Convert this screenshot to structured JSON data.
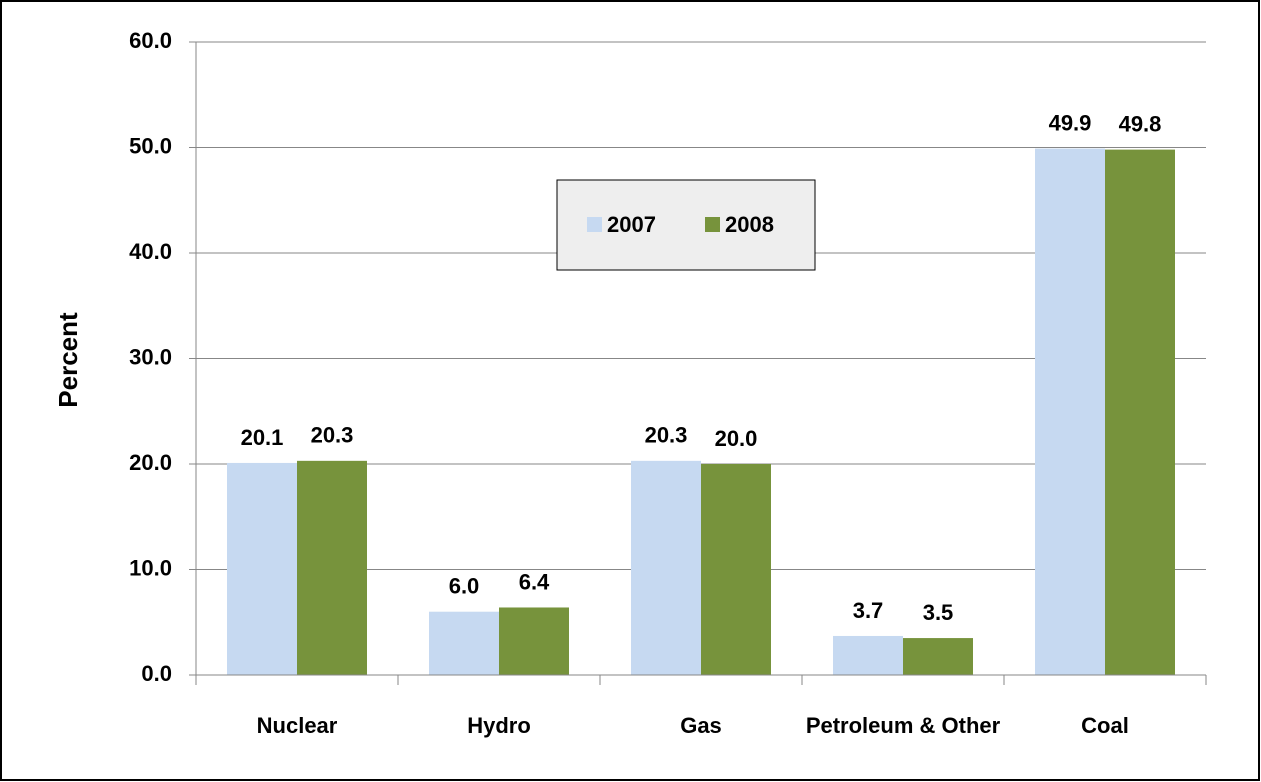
{
  "chart_data": {
    "type": "bar",
    "y_label": "Percent",
    "categories": [
      "Nuclear",
      "Hydro",
      "Gas",
      "Petroleum & Other",
      "Coal"
    ],
    "series": [
      {
        "name": "2007",
        "color": "#c6d9f1",
        "values": [
          20.1,
          6.0,
          20.3,
          3.7,
          49.9
        ],
        "value_labels": [
          "20.1",
          "6.0",
          "20.3",
          "3.7",
          "49.9"
        ]
      },
      {
        "name": "2008",
        "color": "#77933c",
        "values": [
          20.3,
          6.4,
          20.0,
          3.5,
          49.8
        ],
        "value_labels": [
          "20.3",
          "6.4",
          "20.0",
          "3.5",
          "49.8"
        ]
      }
    ],
    "ylim": [
      0,
      60
    ],
    "yticks": [
      {
        "value": 0,
        "label": "0.0"
      },
      {
        "value": 10,
        "label": "10.0"
      },
      {
        "value": 20,
        "label": "20.0"
      },
      {
        "value": 30,
        "label": "30.0"
      },
      {
        "value": 40,
        "label": "40.0"
      },
      {
        "value": 50,
        "label": "50.0"
      },
      {
        "value": 60,
        "label": "60.0"
      }
    ],
    "grid": true,
    "legend": "inside-top-center"
  }
}
